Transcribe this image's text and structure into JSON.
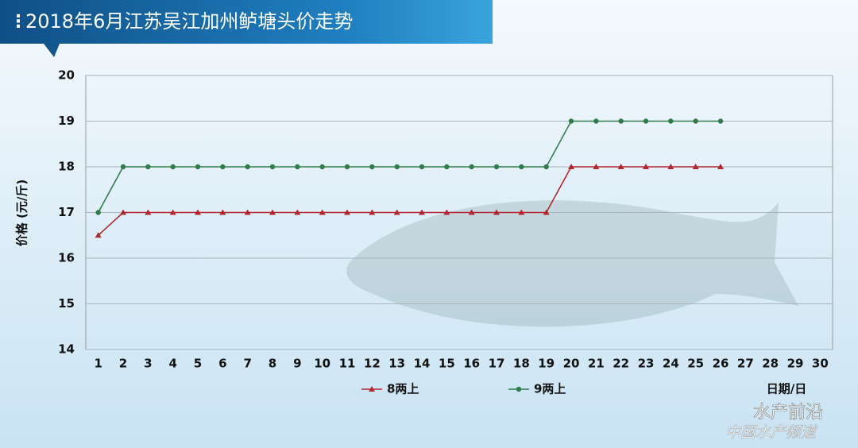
{
  "chart_data": {
    "type": "line",
    "title": "2018年6月江苏吴江加州鲈塘头价走势",
    "y_label": "价格 (元/斤)",
    "x_label": "日期/日",
    "categories": [
      1,
      2,
      3,
      4,
      5,
      6,
      7,
      8,
      9,
      10,
      11,
      12,
      13,
      14,
      15,
      16,
      17,
      18,
      19,
      20,
      21,
      22,
      23,
      24,
      25,
      26,
      27,
      28,
      29,
      30
    ],
    "series": [
      {
        "name": "8两上",
        "color": "#b0282e",
        "marker": "triangle",
        "values": [
          16.5,
          17,
          17,
          17,
          17,
          17,
          17,
          17,
          17,
          17,
          17,
          17,
          17,
          17,
          17,
          17,
          17,
          17,
          17,
          18,
          18,
          18,
          18,
          18,
          18,
          18,
          null,
          null,
          null,
          null
        ]
      },
      {
        "name": "9两上",
        "color": "#2e7d4a",
        "marker": "circle",
        "values": [
          17,
          18,
          18,
          18,
          18,
          18,
          18,
          18,
          18,
          18,
          18,
          18,
          18,
          18,
          18,
          18,
          18,
          18,
          18,
          19,
          19,
          19,
          19,
          19,
          19,
          19,
          null,
          null,
          null,
          null
        ]
      }
    ],
    "ylim": [
      14,
      20
    ],
    "yticks": [
      14,
      15,
      16,
      17,
      18,
      19,
      20
    ],
    "grid": true
  },
  "watermark": {
    "brand": "水产前沿",
    "channel": "中国水产频道"
  }
}
